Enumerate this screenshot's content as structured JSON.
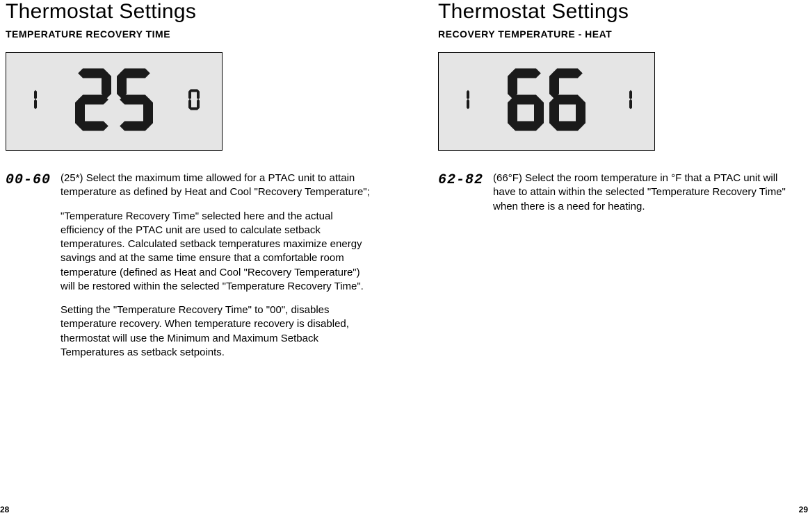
{
  "left": {
    "title": "Thermostat Settings",
    "subtitle": "TEMPERATURE RECOVERY TIME",
    "display": {
      "small_left": "1",
      "big": "25",
      "small_right": "0"
    },
    "range": "00-60",
    "para1": "(25*) Select the maximum time allowed for a PTAC unit to attain temperature as defined by Heat and Cool \"Recovery Temperature\";",
    "para2": "\"Temperature Recovery Time\" selected here and the actual efficiency of the PTAC unit are used to calculate setback temperatures. Calculated setback temperatures maximize energy savings and at the same time ensure that a comfortable room temperature (defined as Heat and Cool \"Recovery Temperature\") will be restored within the selected \"Temperature Recovery Time\".",
    "para3": "Setting the \"Temperature Recovery Time\" to \"00\", disables temperature recovery. When temperature recovery is disabled, thermostat will use the Minimum and Maximum Setback Temperatures as setback setpoints.",
    "page_num": "28"
  },
  "right": {
    "title": "Thermostat Settings",
    "subtitle": "RECOVERY TEMPERATURE - HEAT",
    "display": {
      "small_left": "1",
      "big": "66",
      "small_right": "1"
    },
    "range": "62-82",
    "para1": "(66°F) Select the room temperature in °F that a PTAC unit will have to attain within the selected \"Temperature Recovery Time\" when there is a need for heating.",
    "page_num": "29"
  },
  "style": {
    "lcd_bg": "#e5e5e5",
    "seg_color": "#1a1a1a"
  }
}
